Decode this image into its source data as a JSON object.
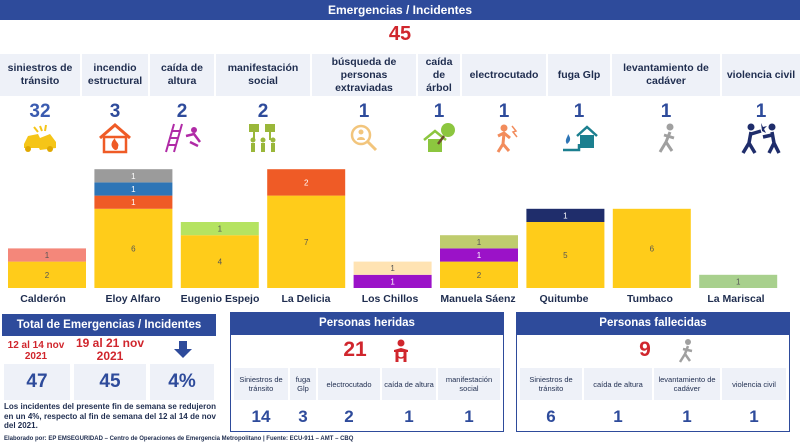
{
  "title": "Emergencias / Incidentes",
  "grand_total": "45",
  "categories": [
    {
      "label": "siniestros de tránsito",
      "count": "32",
      "icon": "car-crash-icon"
    },
    {
      "label": "incendio estructural",
      "count": "3",
      "icon": "house-fire-icon"
    },
    {
      "label": "caída de altura",
      "count": "2",
      "icon": "fall-ladder-icon"
    },
    {
      "label": "manifestación social",
      "count": "2",
      "icon": "protest-icon"
    },
    {
      "label": "búsqueda de personas extraviadas",
      "count": "1",
      "icon": "search-person-icon"
    },
    {
      "label": "caída de árbol",
      "count": "1",
      "icon": "fallen-tree-icon"
    },
    {
      "label": "electrocutado",
      "count": "1",
      "icon": "electrocuted-icon"
    },
    {
      "label": "fuga Glp",
      "count": "1",
      "icon": "gas-leak-icon"
    },
    {
      "label": "levantamiento de cadáver",
      "count": "1",
      "icon": "corpse-icon"
    },
    {
      "label": "violencia civil",
      "count": "1",
      "icon": "fight-icon"
    }
  ],
  "chart_data": {
    "type": "bar",
    "stacked": true,
    "categories": [
      "Calderón",
      "Eloy Alfaro",
      "Eugenio Espejo",
      "La Delicia",
      "Los Chillos",
      "Manuela Sáenz",
      "Quitumbe",
      "Tumbaco",
      "La Mariscal"
    ],
    "segments": [
      [
        {
          "value": 2,
          "color": "#ffcc1a"
        },
        {
          "value": 1,
          "color": "#f4877a"
        }
      ],
      [
        {
          "value": 6,
          "color": "#ffcc1a"
        },
        {
          "value": 1,
          "color": "#ef5b26"
        },
        {
          "value": 1,
          "color": "#2e75b6"
        },
        {
          "value": 1,
          "color": "#9b9b9b"
        }
      ],
      [
        {
          "value": 4,
          "color": "#ffcc1a"
        },
        {
          "value": 1,
          "color": "#b5e361"
        }
      ],
      [
        {
          "value": 7,
          "color": "#ffcc1a"
        },
        {
          "value": 2,
          "color": "#ef5b26"
        }
      ],
      [
        {
          "value": 1,
          "color": "#9b12c8"
        },
        {
          "value": 1,
          "color": "#ffe3b3"
        }
      ],
      [
        {
          "value": 2,
          "color": "#ffcc1a"
        },
        {
          "value": 1,
          "color": "#9b12c8"
        },
        {
          "value": 1,
          "color": "#bfcc6e"
        }
      ],
      [
        {
          "value": 5,
          "color": "#ffcc1a"
        },
        {
          "value": 1,
          "color": "#1f2d6b"
        }
      ],
      [
        {
          "value": 6,
          "color": "#ffcc1a"
        }
      ],
      [
        {
          "value": 1,
          "color": "#a8d08d"
        }
      ]
    ]
  },
  "total_panel": {
    "title": "Total de Emergencias / Incidentes",
    "prev_dates": "12 al 14 nov 2021",
    "curr_dates": "19 al 21 nov 2021",
    "prev_value": "47",
    "curr_value": "45",
    "change": "4%",
    "trend_icon": "arrow-down-icon",
    "note": "Los incidentes del presente fin de semana se redujeron en un 4%, respecto al fin de semana del 12 al 14 de nov del 2021."
  },
  "injured_panel": {
    "title": "Personas heridas",
    "total": "21",
    "icon": "injured-person-icon",
    "items": [
      {
        "label": "Siniestros de tránsito",
        "value": "14"
      },
      {
        "label": "fuga Glp",
        "value": "3"
      },
      {
        "label": "electrocutado",
        "value": "2"
      },
      {
        "label": "caída de altura",
        "value": "1"
      },
      {
        "label": "manifestación social",
        "value": "1"
      }
    ]
  },
  "deceased_panel": {
    "title": "Personas fallecidas",
    "total": "9",
    "icon": "deceased-person-icon",
    "items": [
      {
        "label": "Siniestros de tránsito",
        "value": "6"
      },
      {
        "label": "caída de altura",
        "value": "1"
      },
      {
        "label": "levantamiento de cadáver",
        "value": "1"
      },
      {
        "label": "violencia civil",
        "value": "1"
      }
    ]
  },
  "footer": "Elaborado por: EP EMSEGURIDAD – Centro de Operaciones de Emergencia Metropolitano | Fuente: ECU-911 – AMT – CBQ"
}
